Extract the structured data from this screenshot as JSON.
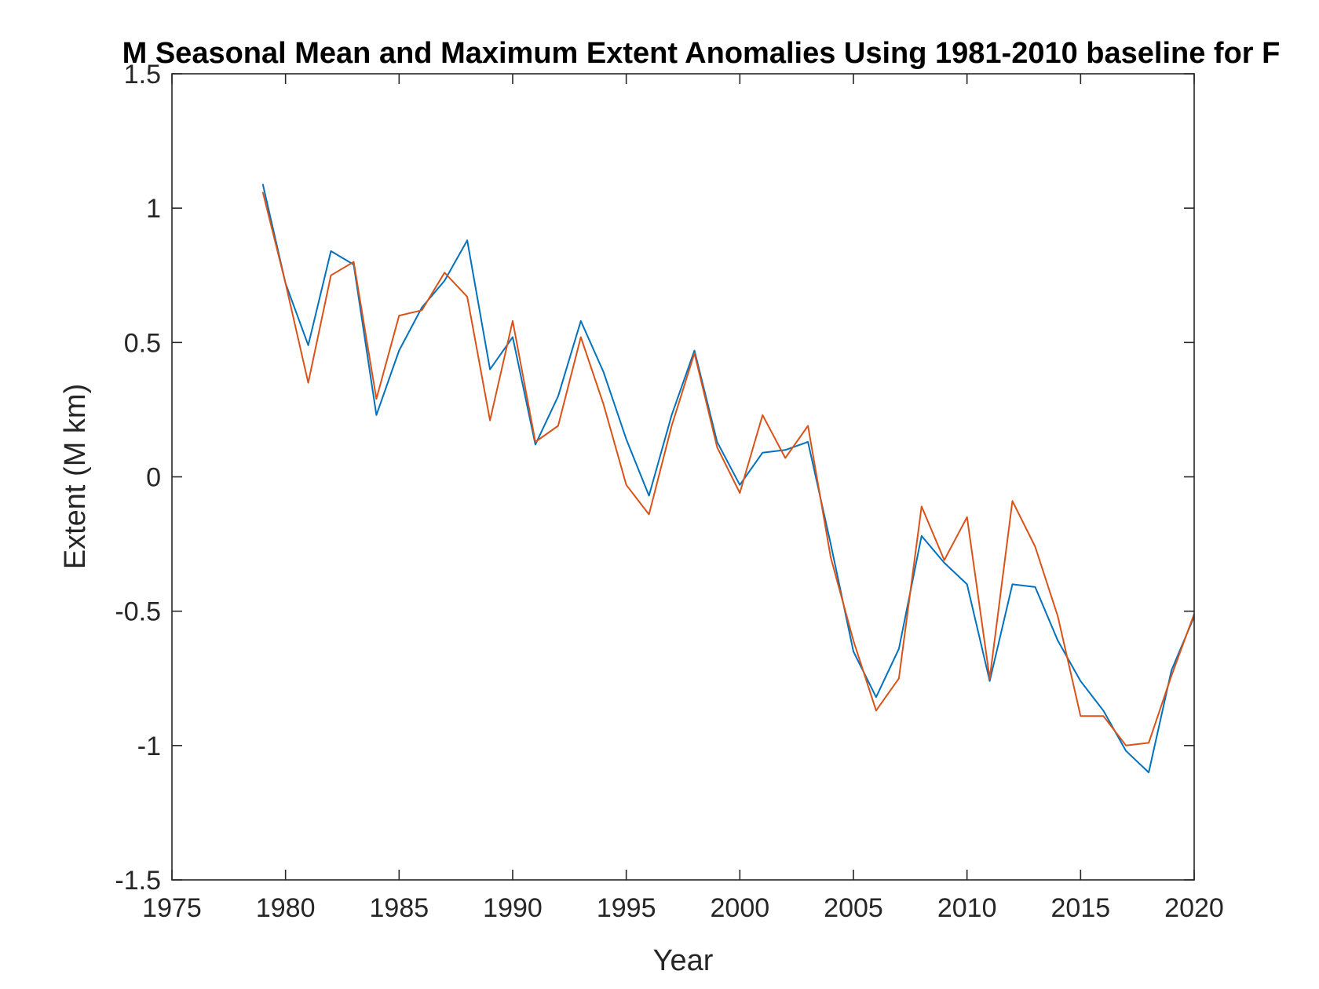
{
  "chart_data": {
    "type": "line",
    "title": "M Seasonal Mean and Maximum Extent Anomalies Using 1981-2010 baseline for F",
    "xlabel": "Year",
    "ylabel": "Extent (M km)",
    "xlim": [
      1975,
      2020
    ],
    "ylim": [
      -1.5,
      1.5
    ],
    "x_ticks": [
      1975,
      1980,
      1985,
      1990,
      1995,
      2000,
      2005,
      2010,
      2015,
      2020
    ],
    "y_ticks": [
      -1.5,
      -1,
      -0.5,
      0,
      0.5,
      1,
      1.5
    ],
    "x_tick_labels": [
      "1975",
      "1980",
      "1985",
      "1990",
      "1995",
      "2000",
      "2005",
      "2010",
      "2015",
      "2020"
    ],
    "y_tick_labels": [
      "-1.5",
      "-1",
      "-0.5",
      "0",
      "0.5",
      "1",
      "1.5"
    ],
    "grid": false,
    "x": [
      1979,
      1980,
      1981,
      1982,
      1983,
      1984,
      1985,
      1986,
      1987,
      1988,
      1989,
      1990,
      1991,
      1992,
      1993,
      1994,
      1995,
      1996,
      1997,
      1998,
      1999,
      2000,
      2001,
      2002,
      2003,
      2004,
      2005,
      2006,
      2007,
      2008,
      2009,
      2010,
      2011,
      2012,
      2013,
      2014,
      2015,
      2016,
      2017,
      2018,
      2019,
      2020
    ],
    "series": [
      {
        "color": "#0072BD",
        "values": [
          1.09,
          0.72,
          0.49,
          0.84,
          0.79,
          0.23,
          0.47,
          0.63,
          0.73,
          0.88,
          0.4,
          0.52,
          0.12,
          0.3,
          0.58,
          0.39,
          0.14,
          -0.07,
          0.23,
          0.47,
          0.13,
          -0.03,
          0.09,
          0.1,
          0.13,
          -0.25,
          -0.65,
          -0.82,
          -0.64,
          -0.22,
          -0.32,
          -0.4,
          -0.76,
          -0.4,
          -0.41,
          -0.61,
          -0.76,
          -0.87,
          -1.02,
          -1.1,
          -0.72,
          -0.52
        ]
      },
      {
        "color": "#D95319",
        "values": [
          1.06,
          0.72,
          0.35,
          0.75,
          0.8,
          0.29,
          0.6,
          0.62,
          0.76,
          0.67,
          0.21,
          0.58,
          0.13,
          0.19,
          0.52,
          0.27,
          -0.03,
          -0.14,
          0.19,
          0.46,
          0.11,
          -0.06,
          0.23,
          0.07,
          0.19,
          -0.3,
          -0.61,
          -0.87,
          -0.75,
          -0.11,
          -0.31,
          -0.15,
          -0.75,
          -0.09,
          -0.26,
          -0.52,
          -0.89,
          -0.89,
          -1.0,
          -0.99,
          -0.74,
          -0.51
        ]
      }
    ]
  }
}
